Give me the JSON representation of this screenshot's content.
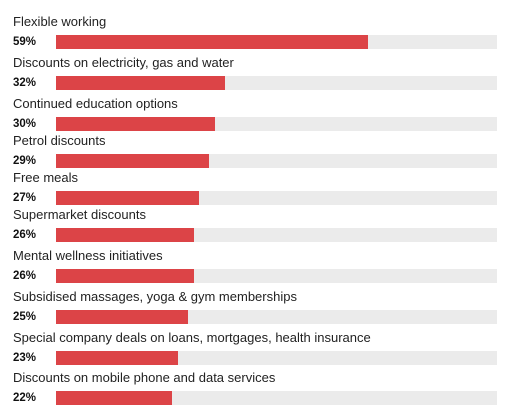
{
  "chart_data": {
    "type": "bar",
    "orientation": "horizontal",
    "title": "",
    "xlabel": "",
    "ylabel": "",
    "xlim": [
      0,
      100
    ],
    "grid": false,
    "legend": "none",
    "bar_color": "#dc4447",
    "track_color": "#ebebeb",
    "categories": [
      "Flexible working",
      "Discounts on electricity, gas and water",
      "Continued education options",
      "Petrol discounts",
      "Free meals",
      "Supermarket discounts",
      "Mental wellness initiatives",
      "Subsidised massages, yoga & gym memberships",
      "Special company deals on loans, mortgages, health insurance",
      "Discounts on mobile phone and data services"
    ],
    "values": [
      59,
      32,
      30,
      29,
      27,
      26,
      26,
      25,
      23,
      22
    ],
    "value_labels": [
      "59%",
      "32%",
      "30%",
      "29%",
      "27%",
      "26%",
      "26%",
      "25%",
      "23%",
      "22%"
    ]
  }
}
